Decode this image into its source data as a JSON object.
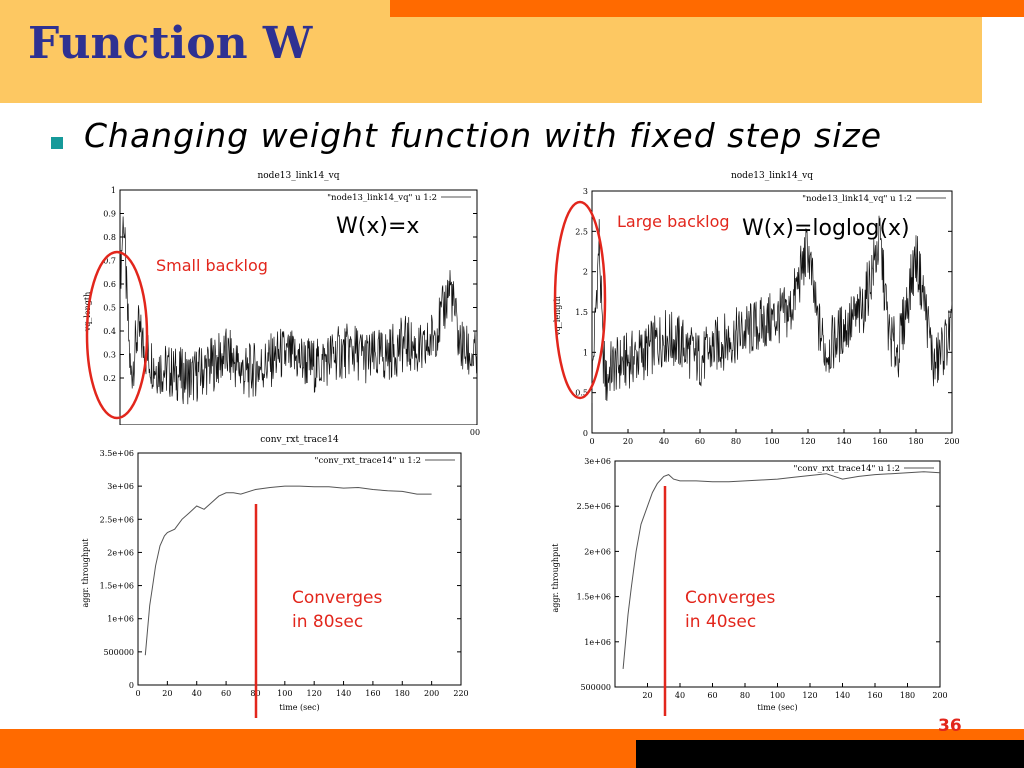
{
  "slide": {
    "title": "Function W",
    "bullet": "Changing weight function with fixed step size",
    "page_number": "36"
  },
  "annotations": {
    "wx_left": "W(x)=x",
    "wx_right": "W(x)=loglog(x)",
    "small_backlog": "Small backlog",
    "large_backlog": "Large backlog",
    "conv_left_1": "Converges",
    "conv_left_2": "in 80sec",
    "conv_right_1": "Converges",
    "conv_right_2": "in 40sec"
  },
  "colors": {
    "accent_red": "#e2261c",
    "orange": "#ff6a00",
    "title_band": "#fdc862",
    "title_text": "#2e3192"
  },
  "chart_data": [
    {
      "type": "line",
      "title": "node13_link14_vq",
      "ylabel": "vq_length",
      "legend": "\"node13_link14_vq\" u 1:2",
      "legend_position": "top-right",
      "ylim": [
        0,
        1
      ],
      "xlim": [
        0,
        200
      ],
      "yticks": [
        "0.2",
        "0.3",
        "0.4",
        "0.5",
        "0.6",
        "0.7",
        "0.8",
        "0.9",
        "1"
      ],
      "xtick_visible": "00",
      "x": [
        0,
        2,
        4,
        6,
        8,
        10,
        15,
        20,
        30,
        40,
        50,
        60,
        70,
        80,
        90,
        100,
        110,
        120,
        130,
        140,
        150,
        160,
        170,
        180,
        185,
        190,
        195,
        200
      ],
      "values": [
        0.6,
        0.9,
        0.5,
        0.2,
        0.3,
        0.4,
        0.3,
        0.25,
        0.22,
        0.2,
        0.25,
        0.3,
        0.22,
        0.25,
        0.3,
        0.28,
        0.25,
        0.3,
        0.32,
        0.28,
        0.3,
        0.35,
        0.3,
        0.45,
        0.6,
        0.35,
        0.3,
        0.28
      ]
    },
    {
      "type": "line",
      "title": "node13_link14_vq",
      "ylabel": "vq_length",
      "legend": "\"node13_link14_vq\" u 1:2",
      "legend_position": "top-right",
      "ylim": [
        0,
        3
      ],
      "xlim": [
        0,
        200
      ],
      "yticks": [
        "0",
        "0.5",
        "1",
        "1.5",
        "2",
        "2.5",
        "3"
      ],
      "xticks": [
        "0",
        "20",
        "40",
        "60",
        "80",
        "100",
        "120",
        "140",
        "160",
        "180",
        "200"
      ],
      "x": [
        0,
        2,
        4,
        6,
        8,
        10,
        20,
        30,
        40,
        50,
        60,
        70,
        80,
        90,
        100,
        110,
        120,
        125,
        130,
        140,
        150,
        160,
        165,
        170,
        180,
        185,
        190,
        200
      ],
      "values": [
        0.6,
        1.5,
        2.4,
        1.0,
        0.6,
        0.8,
        0.9,
        1.0,
        1.2,
        1.1,
        0.9,
        1.1,
        1.2,
        1.3,
        1.4,
        1.5,
        2.3,
        1.4,
        1.0,
        1.3,
        1.5,
        2.4,
        1.2,
        1.0,
        2.2,
        1.6,
        0.8,
        1.3
      ]
    },
    {
      "type": "line",
      "title": "conv_rxt_trace14",
      "ylabel": "aggr. throughput",
      "xlabel": "time (sec)",
      "legend": "\"conv_rxt_trace14\" u 1:2",
      "legend_position": "top-right",
      "ylim": [
        0,
        3500000
      ],
      "xlim": [
        0,
        220
      ],
      "yticks": [
        "0",
        "500000",
        "1e+06",
        "1.5e+06",
        "2e+06",
        "2.5e+06",
        "3e+06",
        "3.5e+06"
      ],
      "xticks": [
        "0",
        "20",
        "40",
        "60",
        "80",
        "100",
        "120",
        "140",
        "160",
        "180",
        "200",
        "220"
      ],
      "x": [
        5,
        8,
        10,
        12,
        15,
        18,
        20,
        25,
        30,
        35,
        40,
        45,
        50,
        55,
        60,
        65,
        70,
        80,
        90,
        100,
        110,
        120,
        130,
        140,
        150,
        160,
        170,
        180,
        190,
        200
      ],
      "values": [
        450000,
        1200000,
        1500000,
        1800000,
        2100000,
        2250000,
        2300000,
        2350000,
        2500000,
        2600000,
        2700000,
        2650000,
        2750000,
        2850000,
        2900000,
        2900000,
        2880000,
        2950000,
        2980000,
        3000000,
        3000000,
        2990000,
        2990000,
        2970000,
        2980000,
        2950000,
        2930000,
        2920000,
        2880000,
        2880000
      ]
    },
    {
      "type": "line",
      "title": "",
      "ylabel": "aggr. throughput",
      "xlabel": "time (sec)",
      "legend": "\"conv_rxt_trace14\" u 1:2",
      "legend_position": "top-right",
      "ylim": [
        500000,
        3000000
      ],
      "xlim": [
        0,
        200
      ],
      "yticks": [
        "500000",
        "1e+06",
        "1.5e+06",
        "2e+06",
        "2.5e+06",
        "3e+06"
      ],
      "xticks": [
        "20",
        "40",
        "60",
        "80",
        "100",
        "120",
        "140",
        "160",
        "180",
        "200"
      ],
      "x": [
        5,
        8,
        10,
        13,
        16,
        20,
        23,
        26,
        30,
        33,
        36,
        40,
        50,
        60,
        70,
        80,
        90,
        100,
        110,
        120,
        130,
        140,
        150,
        160,
        170,
        180,
        190,
        200
      ],
      "values": [
        700000,
        1300000,
        1600000,
        2000000,
        2300000,
        2500000,
        2650000,
        2750000,
        2830000,
        2850000,
        2800000,
        2780000,
        2780000,
        2770000,
        2770000,
        2780000,
        2790000,
        2800000,
        2820000,
        2840000,
        2860000,
        2800000,
        2830000,
        2850000,
        2860000,
        2870000,
        2880000,
        2870000
      ]
    }
  ]
}
